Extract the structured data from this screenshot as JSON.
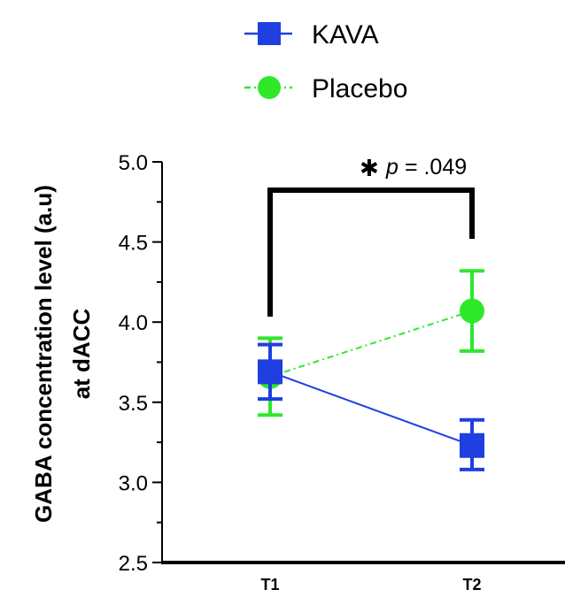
{
  "chart_data": {
    "type": "line",
    "categories": [
      "T1",
      "T2"
    ],
    "ylabel_lines": [
      "GABA concentration level (a.u)",
      "at dACC"
    ],
    "ylim": [
      2.5,
      5.0
    ],
    "y_ticks": [
      "2.5",
      "3.0",
      "3.5",
      "4.0",
      "4.5",
      "5.0"
    ],
    "y_tick_values": [
      2.5,
      3.0,
      3.5,
      4.0,
      4.5,
      5.0
    ],
    "legend_position": "top-center",
    "grid": false,
    "series": [
      {
        "name": "KAVA",
        "marker": "square",
        "line_style": "solid",
        "color": "#1f3fe0",
        "values": [
          3.69,
          3.23
        ],
        "err_low": [
          3.52,
          3.08
        ],
        "err_high": [
          3.86,
          3.39
        ]
      },
      {
        "name": "Placebo",
        "marker": "circle",
        "line_style": "dash-dot",
        "color": "#2ee82a",
        "values": [
          3.66,
          4.07
        ],
        "err_low": [
          3.42,
          3.82
        ],
        "err_high": [
          3.9,
          4.32
        ]
      }
    ],
    "annotation": {
      "star": "✱",
      "p_label": "p",
      "p_value_text": " = .049"
    }
  }
}
